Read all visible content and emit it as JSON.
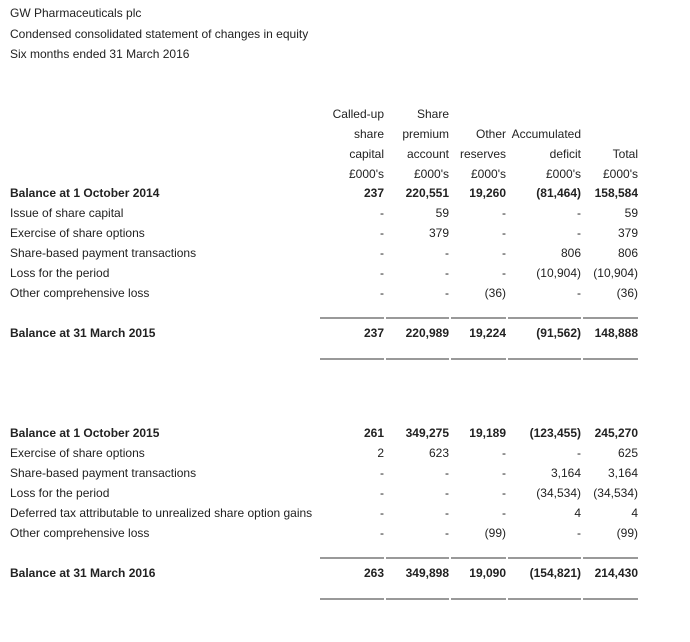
{
  "header": {
    "company": "GW Pharmaceuticals plc",
    "statement": "Condensed consolidated statement of changes in equity",
    "period": "Six months ended 31 March 2016"
  },
  "table": {
    "columns": [
      {
        "lines": [
          "Called-up",
          "share",
          "capital",
          "£000's"
        ]
      },
      {
        "lines": [
          "Share",
          "premium",
          "account",
          "£000's"
        ]
      },
      {
        "lines": [
          "Other",
          "reserves",
          "£000's"
        ]
      },
      {
        "lines": [
          "Accumulated",
          "deficit",
          "£000's"
        ]
      },
      {
        "lines": [
          "Total",
          "£000's"
        ]
      }
    ],
    "sections": [
      {
        "opening": {
          "label": "Balance at 1 October 2014",
          "values": [
            "237",
            "220,551",
            "19,260",
            "(81,464)",
            "158,584"
          ]
        },
        "movements": [
          {
            "label": "Issue of share capital",
            "values": [
              "-",
              "59",
              "-",
              "-",
              "59"
            ]
          },
          {
            "label": "Exercise of share options",
            "values": [
              "-",
              "379",
              "-",
              "-",
              "379"
            ]
          },
          {
            "label": "Share-based payment transactions",
            "values": [
              "-",
              "-",
              "-",
              "806",
              "806"
            ]
          },
          {
            "label": "Loss for the period",
            "values": [
              "-",
              "-",
              "-",
              "(10,904)",
              "(10,904)"
            ]
          },
          {
            "label": "Other comprehensive loss",
            "values": [
              "-",
              "-",
              "(36)",
              "-",
              "(36)"
            ]
          }
        ],
        "closing": {
          "label": "Balance at 31 March 2015",
          "values": [
            "237",
            "220,989",
            "19,224",
            "(91,562)",
            "148,888"
          ]
        }
      },
      {
        "opening": {
          "label": "Balance at 1 October 2015",
          "values": [
            "261",
            "349,275",
            "19,189",
            "(123,455)",
            "245,270"
          ]
        },
        "movements": [
          {
            "label": "Exercise of share options",
            "values": [
              "2",
              "623",
              "-",
              "-",
              "625"
            ]
          },
          {
            "label": "Share-based payment transactions",
            "values": [
              "-",
              "-",
              "-",
              "3,164",
              "3,164"
            ]
          },
          {
            "label": "Loss for the period",
            "values": [
              "-",
              "-",
              "-",
              "(34,534)",
              "(34,534)"
            ]
          },
          {
            "label": "Deferred tax attributable to unrealized share option gains",
            "values": [
              "-",
              "-",
              "-",
              "4",
              "4"
            ]
          },
          {
            "label": "Other comprehensive loss",
            "values": [
              "-",
              "-",
              "(99)",
              "-",
              "(99)"
            ]
          }
        ],
        "closing": {
          "label": "Balance at 31 March 2016",
          "values": [
            "263",
            "349,898",
            "19,090",
            "(154,821)",
            "214,430"
          ]
        }
      }
    ]
  }
}
